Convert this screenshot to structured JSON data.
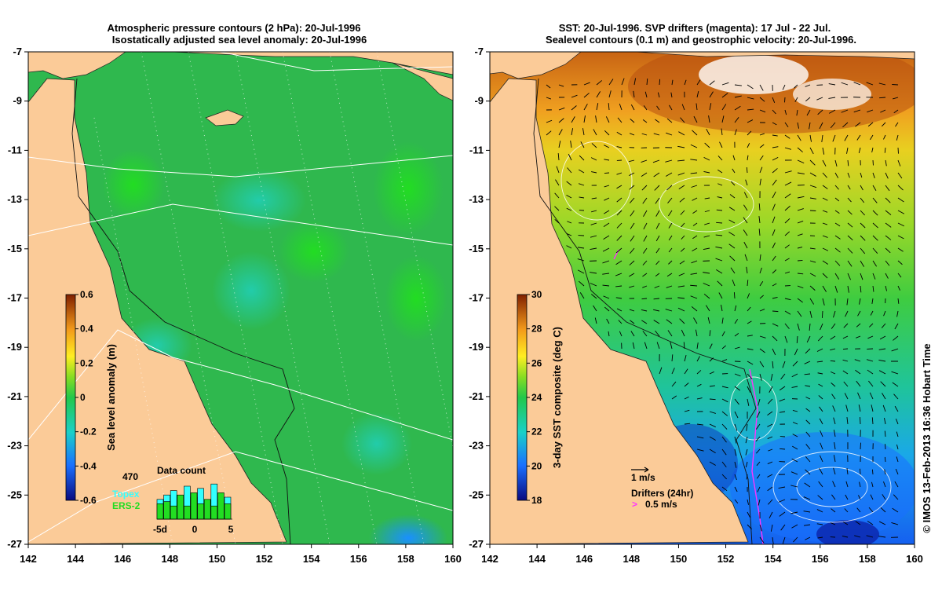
{
  "left_panel": {
    "title_line1": "Atmospheric pressure contours (2 hPa): 20-Jul-1996",
    "title_line2": "Isostatically adjusted sea level anomaly: 20-Jul-1996",
    "y_ticks": [
      "-7",
      "-9",
      "-11",
      "-13",
      "-15",
      "-17",
      "-19",
      "-21",
      "-23",
      "-25",
      "-27"
    ],
    "x_ticks": [
      "142",
      "144",
      "146",
      "148",
      "150",
      "152",
      "154",
      "156",
      "158",
      "160"
    ],
    "colorbar": {
      "label": "Sea level anomaly (m)",
      "ticks": [
        "0.6",
        "0.4",
        "0.2",
        "0",
        "-0.2",
        "-0.4",
        "-0.6"
      ]
    },
    "data_count": {
      "title": "Data count",
      "max_label": "470",
      "x_ticks": [
        "-5d",
        "0",
        "5"
      ],
      "legend_topex": "Topex",
      "legend_ers": "ERS-2",
      "topex_color": "#33ffff",
      "ers_color": "#22dd22"
    }
  },
  "right_panel": {
    "title_line1": "SST: 20-Jul-1996. SVP drifters (magenta): 17 Jul - 22 Jul.",
    "title_line2": "Sealevel contours (0.1 m) and geostrophic velocity: 20-Jul-1996.",
    "y_ticks": [
      "-7",
      "-9",
      "-11",
      "-13",
      "-15",
      "-17",
      "-19",
      "-21",
      "-23",
      "-25",
      "-27"
    ],
    "x_ticks": [
      "142",
      "144",
      "146",
      "148",
      "150",
      "152",
      "154",
      "156",
      "158",
      "160"
    ],
    "colorbar": {
      "label": "3-day SST composite (deg C)",
      "ticks": [
        "30",
        "28",
        "26",
        "24",
        "22",
        "20",
        "18"
      ]
    },
    "velocity_scale": "1 m/s",
    "drifters_label": "Drifters (24hr)",
    "drifter_speed": "0.5 m/s"
  },
  "credit": "© IMOS 13-Feb-2013 16:36 Hobart Time",
  "colors": {
    "land": "#fbcb98",
    "sea_anomaly_base": "#33bb55",
    "drifter": "#ff33ff"
  }
}
